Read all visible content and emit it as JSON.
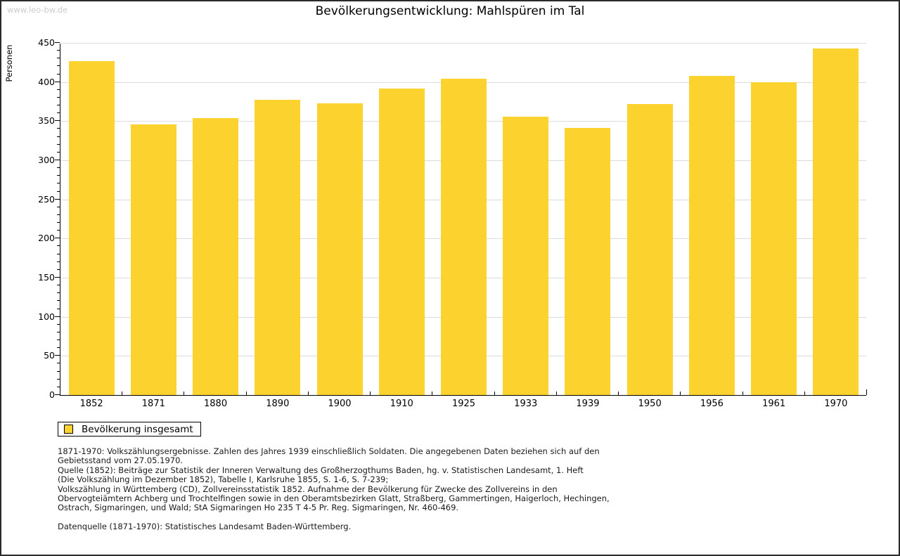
{
  "watermark": "www.leo-bw.de",
  "title": "Bevölkerungsentwicklung: Mahlspüren im Tal",
  "chart_data": {
    "type": "bar",
    "title": "Bevölkerungsentwicklung: Mahlspüren im Tal",
    "xlabel": "",
    "ylabel": "Personen",
    "categories": [
      "1852",
      "1871",
      "1880",
      "1890",
      "1900",
      "1910",
      "1925",
      "1933",
      "1939",
      "1950",
      "1956",
      "1961",
      "1970"
    ],
    "values": [
      427,
      346,
      354,
      377,
      373,
      392,
      404,
      356,
      341,
      372,
      408,
      400,
      443
    ],
    "ylim": [
      0,
      450
    ],
    "ytick_step": 50,
    "minor_tick_step": 10,
    "grid": true,
    "legend_position": "bottom-left",
    "bar_color": "#FCD32E",
    "grid_color": "#dcdcdc",
    "axis_color": "#000000"
  },
  "legend": {
    "label": "Bevölkerung insgesamt",
    "swatch_icon": "yellow-square-swatch"
  },
  "footer": {
    "notes_lines": [
      "1871-1970: Volkszählungsergebnisse. Zahlen des Jahres 1939 einschließlich Soldaten. Die angegebenen Daten beziehen sich auf den",
      "Gebietsstand vom 27.05.1970.",
      "Quelle (1852): Beiträge zur Statistik der Inneren Verwaltung des Großherzogthums Baden, hg. v. Statistischen Landesamt, 1. Heft",
      "(Die Volkszählung im Dezember 1852), Tabelle I, Karlsruhe 1855, S. 1-6, S. 7-239;",
      "Volkszählung in Württemberg (CD), Zollvereinsstatistik 1852. Aufnahme der Bevölkerung für Zwecke des Zollvereins in den",
      "Obervogteiämtern Achberg und Trochtelfingen sowie in den Oberamtsbezirken Glatt, Straßberg, Gammertingen, Haigerloch, Hechingen,",
      "Ostrach, Sigmaringen, und Wald; StA Sigmaringen Ho 235 T 4-5 Pr. Reg. Sigmaringen, Nr. 460-469."
    ],
    "datasource": "Datenquelle (1871-1970): Statistisches Landesamt Baden-Württemberg."
  },
  "colors": {
    "bar": "#FCD32E",
    "grid": "#dcdcdc",
    "axis": "#000000",
    "watermark": "#cccccc"
  }
}
